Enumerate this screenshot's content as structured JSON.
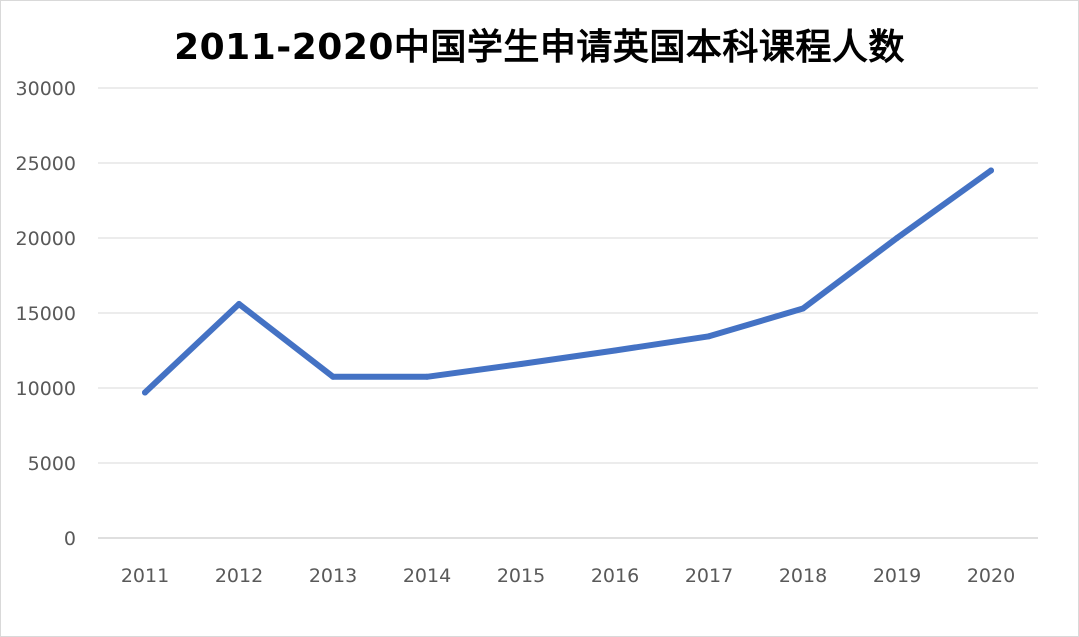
{
  "chart_data": {
    "type": "line",
    "title": "2011-2020中国学生申请英国本科课程人数",
    "xlabel": "",
    "ylabel": "",
    "categories": [
      "2011",
      "2012",
      "2013",
      "2014",
      "2015",
      "2016",
      "2017",
      "2018",
      "2019",
      "2020"
    ],
    "series": [
      {
        "values": [
          9700,
          15600,
          10750,
          10750,
          11600,
          12500,
          13450,
          15300,
          20000,
          24500
        ],
        "color": "#4472c4"
      }
    ],
    "ylim": [
      0,
      30000
    ],
    "yticks": [
      "0",
      "5000",
      "10000",
      "15000",
      "20000",
      "25000",
      "30000"
    ],
    "grid": true,
    "legend": "none"
  }
}
